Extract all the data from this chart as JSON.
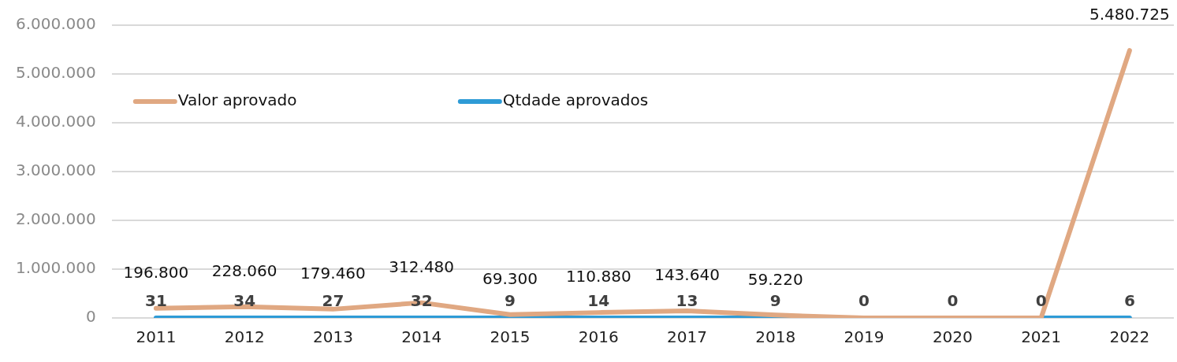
{
  "chart_data": {
    "type": "line",
    "categories": [
      "2011",
      "2012",
      "2013",
      "2014",
      "2015",
      "2016",
      "2017",
      "2018",
      "2019",
      "2020",
      "2021",
      "2022"
    ],
    "series": [
      {
        "name": "Valor aprovado",
        "color": "#e0a882",
        "values": [
          196800,
          228060,
          179460,
          312480,
          69300,
          110880,
          143640,
          59220,
          0,
          0,
          0,
          5480725
        ],
        "value_labels": [
          "196.800",
          "228.060",
          "179.460",
          "312.480",
          "69.300",
          "110.880",
          "143.640",
          "59.220",
          null,
          null,
          null,
          "5.480.725"
        ]
      },
      {
        "name": "Qtdade aprovados",
        "color": "#2e9bd6",
        "values": [
          31,
          34,
          27,
          32,
          9,
          14,
          13,
          9,
          0,
          0,
          0,
          6
        ],
        "value_labels": [
          "31",
          "34",
          "27",
          "32",
          "9",
          "14",
          "13",
          "9",
          "0",
          "0",
          "0",
          "6"
        ]
      }
    ],
    "ylim": [
      0,
      6000000
    ],
    "yticks": [
      {
        "value": 0,
        "label": "0"
      },
      {
        "value": 1000000,
        "label": "1.000.000"
      },
      {
        "value": 2000000,
        "label": "2.000.000"
      },
      {
        "value": 3000000,
        "label": "3.000.000"
      },
      {
        "value": 4000000,
        "label": "4.000.000"
      },
      {
        "value": 5000000,
        "label": "5.000.000"
      },
      {
        "value": 6000000,
        "label": "6.000.000"
      }
    ],
    "grid": "y",
    "legend": "top left",
    "marker": "none",
    "line_style": "solid"
  }
}
